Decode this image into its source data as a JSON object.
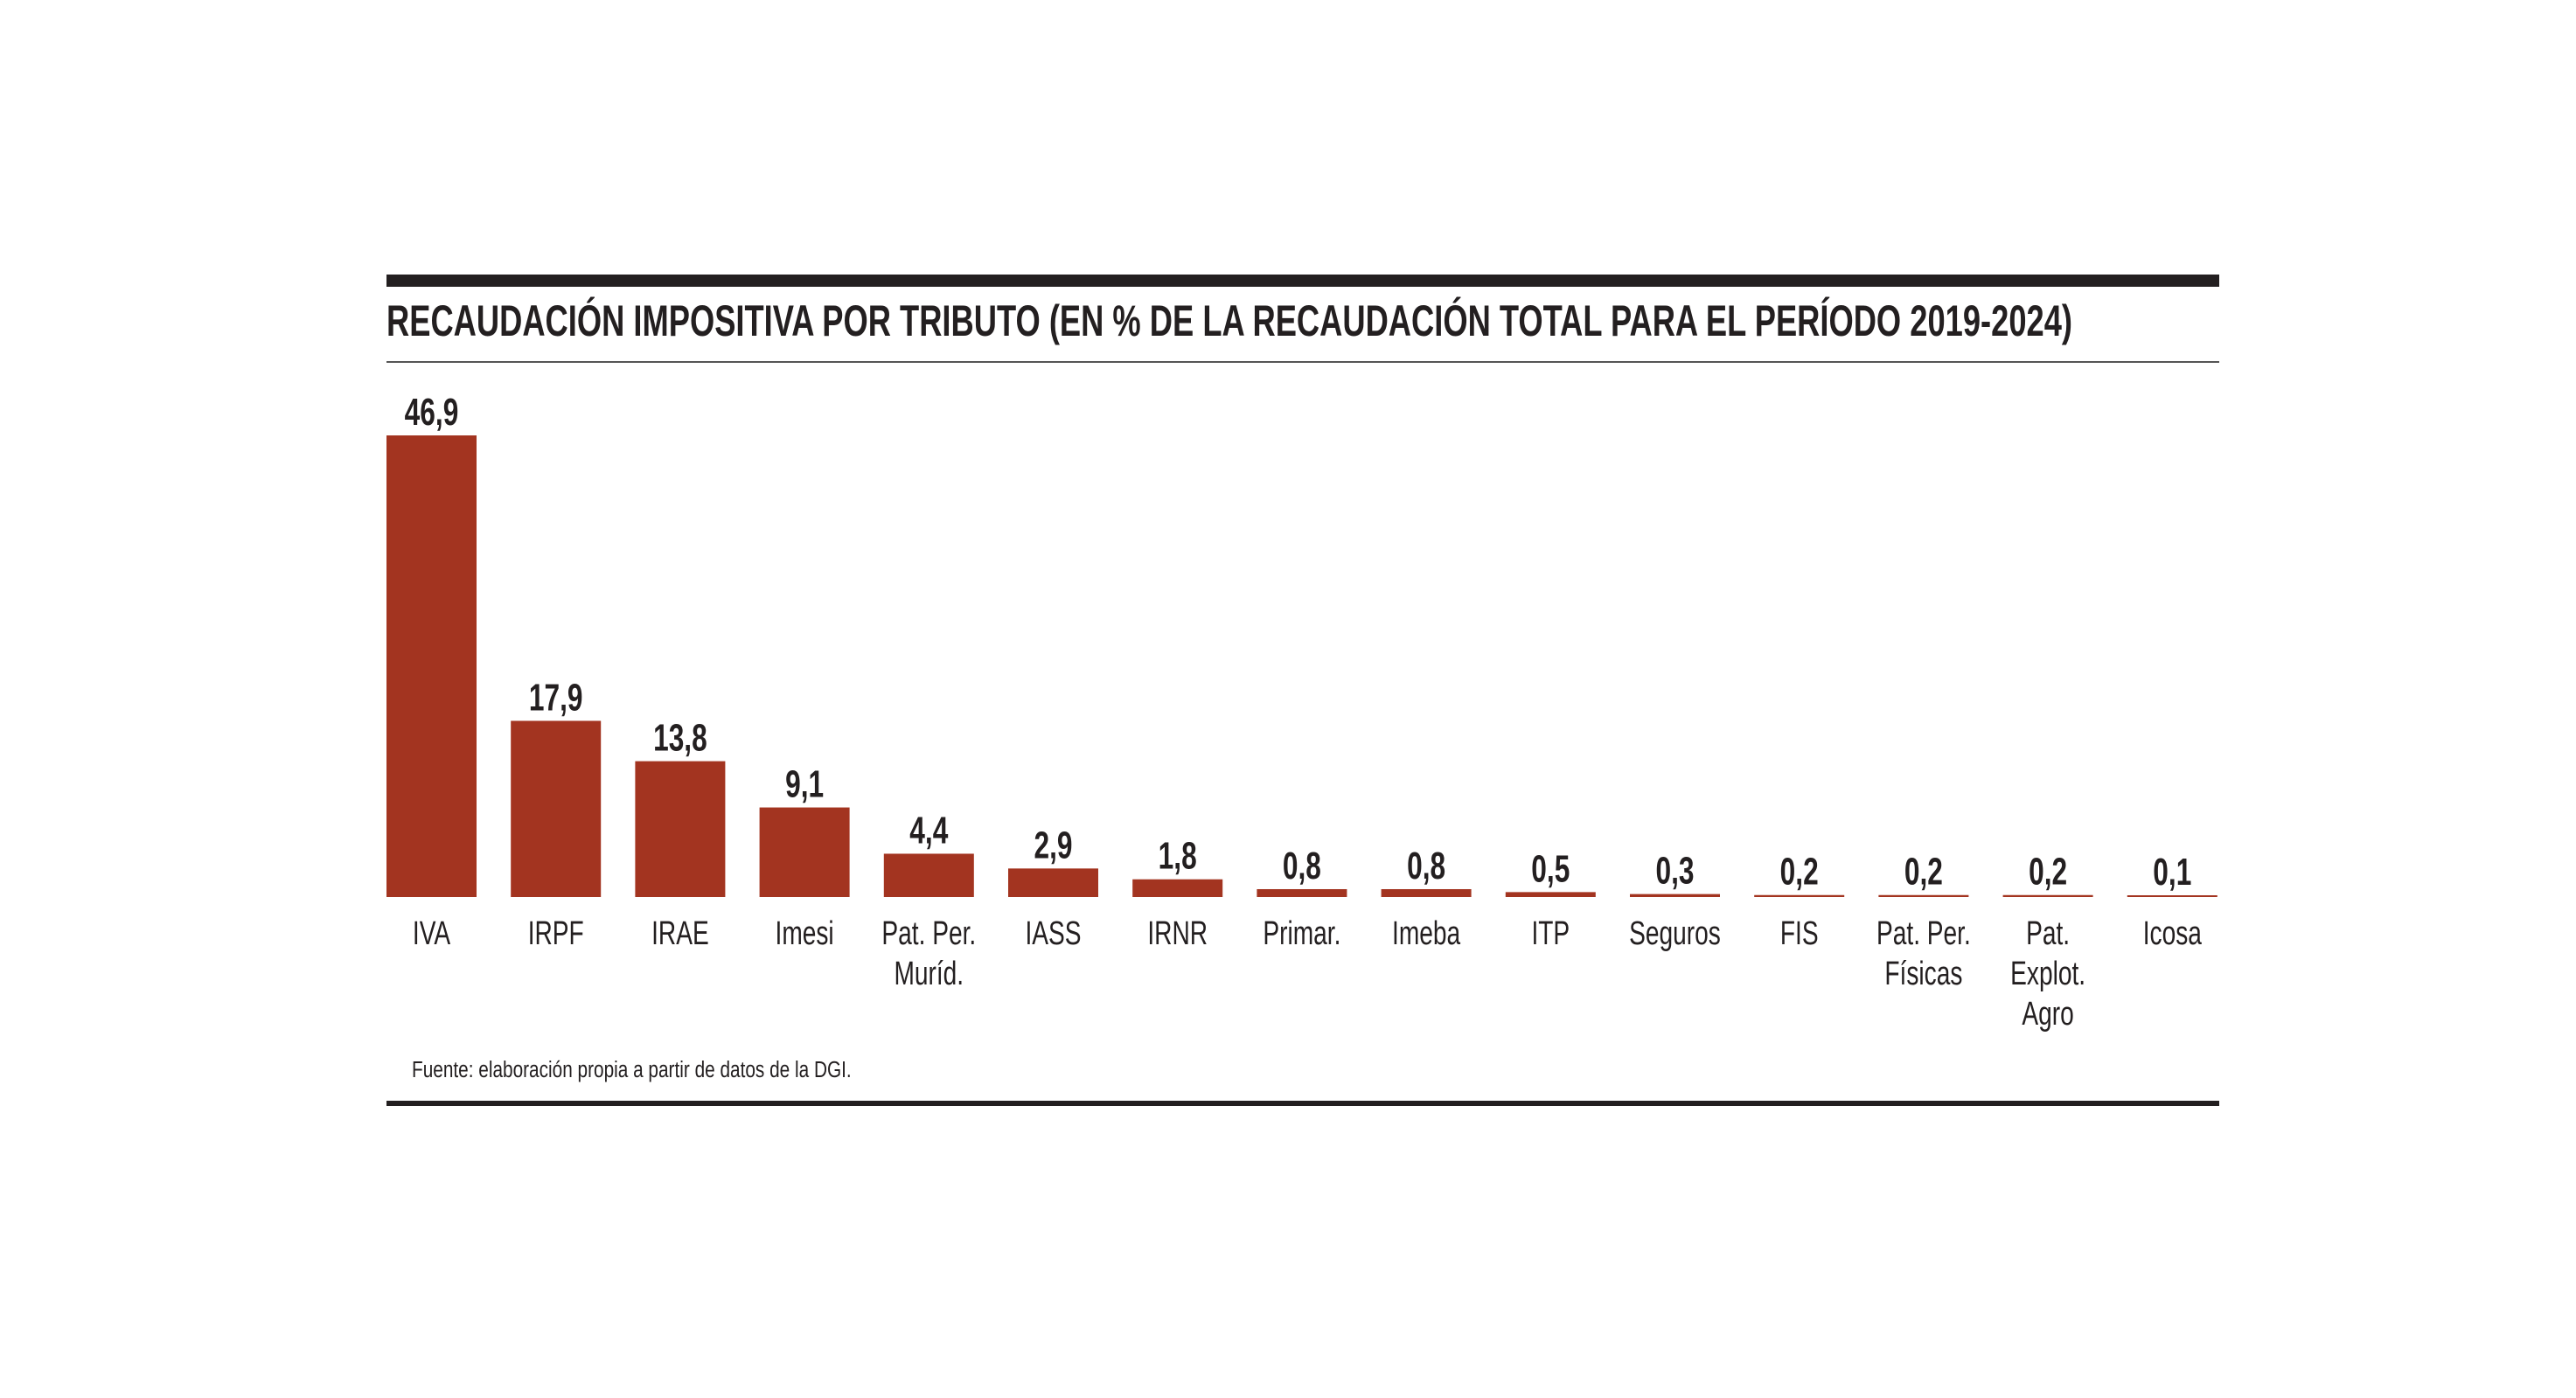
{
  "chart_data": {
    "type": "bar",
    "title": "RECAUDACIÓN IMPOSITIVA POR TRIBUTO (EN % DE LA RECAUDACIÓN TOTAL PARA EL PERÍODO 2019-2024)",
    "xlabel": "",
    "ylabel": "",
    "ylim": [
      0,
      50
    ],
    "grid": false,
    "categories": [
      [
        "IVA"
      ],
      [
        "IRPF"
      ],
      [
        "IRAE"
      ],
      [
        "Imesi"
      ],
      [
        "Pat. Per.",
        "Muríd."
      ],
      [
        "IASS"
      ],
      [
        "IRNR"
      ],
      [
        "Primar."
      ],
      [
        "Imeba"
      ],
      [
        "ITP"
      ],
      [
        "Seguros"
      ],
      [
        "FIS"
      ],
      [
        "Pat. Per.",
        "Físicas"
      ],
      [
        "Pat.",
        "Explot.",
        "Agro"
      ],
      [
        "Icosa"
      ]
    ],
    "values": [
      46.9,
      17.9,
      13.8,
      9.1,
      4.4,
      2.9,
      1.8,
      0.8,
      0.8,
      0.5,
      0.3,
      0.2,
      0.2,
      0.2,
      0.1
    ],
    "value_labels": [
      "46,9",
      "17,9",
      "13,8",
      "9,1",
      "4,4",
      "2,9",
      "1,8",
      "0,8",
      "0,8",
      "0,5",
      "0,3",
      "0,2",
      "0,2",
      "0,2",
      "0,1"
    ],
    "source": "Fuente: elaboración propia a partir de datos de la DGI.",
    "colors": {
      "bar": "#a33420",
      "rule": "#231f20",
      "thin_rule": "#555555"
    }
  }
}
